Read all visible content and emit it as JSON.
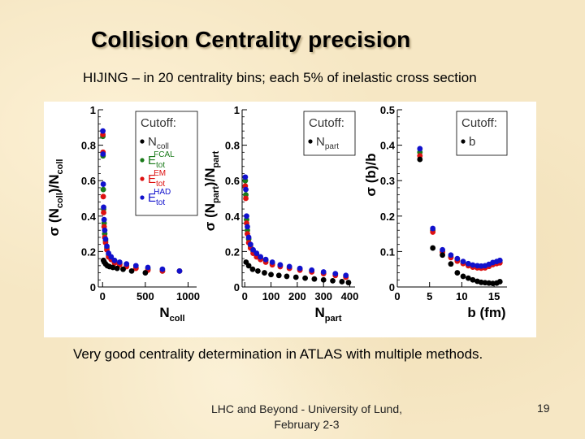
{
  "slide": {
    "title": "Collision Centrality precision",
    "subtitle": "HIJING – in 20 centrality bins; each 5% of inelastic cross section",
    "caption": "Very good centrality determination in ATLAS with multiple methods.",
    "footer_line1": "LHC and Beyond - University of Lund,",
    "footer_line2": "February 2-3",
    "page_number": "19"
  },
  "colors": {
    "black": "#000000",
    "green": "#1a7a1a",
    "red": "#dd1111",
    "blue": "#1111cc"
  },
  "chart_data": [
    {
      "type": "scatter",
      "title": "",
      "xlabel": "N",
      "xlabel_sub": "coll",
      "ylabel": "σ (N",
      "ylabel_sub": "coll",
      "ylabel_tail": ")/N",
      "ylabel_tail_sub": "coll",
      "xlim": [
        -50,
        1100
      ],
      "ylim": [
        0,
        1
      ],
      "xticks": [
        0,
        500,
        1000
      ],
      "yticks": [
        0,
        0.2,
        0.4,
        0.6,
        0.8,
        1
      ],
      "ytick_labels": [
        "0",
        "0.2",
        "0.4",
        "0.6",
        "0.8",
        "1"
      ],
      "legend": {
        "title": "Cutoff:",
        "position": "top-right",
        "entries": [
          {
            "name": "N",
            "sub": "coll",
            "sup": "",
            "color": "black"
          },
          {
            "name": "E",
            "sub": "tot",
            "sup": "FCAL",
            "color": "green"
          },
          {
            "name": "E",
            "sub": "tot",
            "sup": "EM",
            "color": "red"
          },
          {
            "name": "E",
            "sub": "tot",
            "sup": "HAD",
            "color": "blue"
          }
        ]
      },
      "series": [
        {
          "name": "Ncoll",
          "color": "black",
          "x": [
            10,
            20,
            35,
            55,
            80,
            120,
            170,
            240,
            340,
            500
          ],
          "y": [
            0.15,
            0.14,
            0.13,
            0.12,
            0.115,
            0.11,
            0.105,
            0.1,
            0.09,
            0.08
          ]
        },
        {
          "name": "Etot FCAL",
          "color": "green",
          "x": [
            3,
            5,
            8,
            12,
            18,
            25,
            35,
            50,
            70,
            100,
            140,
            200,
            280,
            390,
            530,
            700,
            900
          ],
          "y": [
            0.85,
            0.74,
            0.55,
            0.44,
            0.36,
            0.3,
            0.26,
            0.22,
            0.18,
            0.16,
            0.14,
            0.13,
            0.12,
            0.11,
            0.1,
            0.09,
            0.09
          ]
        },
        {
          "name": "Etot EM",
          "color": "red",
          "x": [
            3,
            5,
            8,
            12,
            18,
            25,
            35,
            50,
            70,
            100,
            140,
            200,
            280,
            390,
            530,
            700,
            900
          ],
          "y": [
            0.86,
            0.76,
            0.51,
            0.42,
            0.34,
            0.28,
            0.25,
            0.21,
            0.17,
            0.155,
            0.135,
            0.125,
            0.115,
            0.105,
            0.095,
            0.09,
            0.09
          ]
        },
        {
          "name": "Etot HAD",
          "color": "blue",
          "x": [
            3,
            5,
            8,
            12,
            18,
            25,
            35,
            50,
            70,
            100,
            140,
            200,
            280,
            390,
            530,
            700,
            900
          ],
          "y": [
            0.88,
            0.75,
            0.58,
            0.45,
            0.38,
            0.32,
            0.27,
            0.23,
            0.19,
            0.17,
            0.15,
            0.14,
            0.13,
            0.12,
            0.11,
            0.1,
            0.09
          ]
        }
      ]
    },
    {
      "type": "scatter",
      "title": "",
      "xlabel": "N",
      "xlabel_sub": "part",
      "ylabel": "σ (N",
      "ylabel_sub": "part",
      "ylabel_tail": ")/N",
      "ylabel_tail_sub": "part",
      "xlim": [
        -10,
        420
      ],
      "ylim": [
        0,
        1
      ],
      "xticks": [
        0,
        100,
        200,
        300,
        400
      ],
      "yticks": [
        0,
        0.2,
        0.4,
        0.6,
        0.8,
        1
      ],
      "ytick_labels": [
        "0",
        "0.2",
        "0.4",
        "0.6",
        "0.8",
        "1"
      ],
      "legend": {
        "title": "Cutoff:",
        "position": "top-right",
        "entries": [
          {
            "name": "N",
            "sub": "part",
            "sup": "",
            "color": "black"
          }
        ]
      },
      "series": [
        {
          "name": "Npart",
          "color": "black",
          "x": [
            5,
            15,
            30,
            50,
            75,
            100,
            130,
            160,
            195,
            230,
            265,
            300,
            335,
            370,
            395
          ],
          "y": [
            0.14,
            0.12,
            0.1,
            0.09,
            0.08,
            0.07,
            0.065,
            0.06,
            0.055,
            0.05,
            0.045,
            0.04,
            0.035,
            0.03,
            0.025
          ]
        },
        {
          "name": "Etot FCAL",
          "color": "green",
          "x": [
            2,
            4,
            7,
            10,
            15,
            22,
            32,
            45,
            60,
            80,
            105,
            135,
            170,
            210,
            255,
            300,
            345,
            385
          ],
          "y": [
            0.6,
            0.52,
            0.38,
            0.32,
            0.27,
            0.23,
            0.2,
            0.18,
            0.16,
            0.15,
            0.13,
            0.12,
            0.11,
            0.1,
            0.09,
            0.08,
            0.07,
            0.06
          ]
        },
        {
          "name": "Etot EM",
          "color": "red",
          "x": [
            2,
            4,
            7,
            10,
            15,
            22,
            32,
            45,
            60,
            80,
            105,
            135,
            170,
            210,
            255,
            300,
            345,
            385
          ],
          "y": [
            0.57,
            0.5,
            0.36,
            0.3,
            0.25,
            0.22,
            0.19,
            0.17,
            0.155,
            0.14,
            0.125,
            0.115,
            0.105,
            0.095,
            0.085,
            0.075,
            0.065,
            0.055
          ]
        },
        {
          "name": "Etot HAD",
          "color": "blue",
          "x": [
            2,
            4,
            7,
            10,
            15,
            22,
            32,
            45,
            60,
            80,
            105,
            135,
            170,
            210,
            255,
            300,
            345,
            385
          ],
          "y": [
            0.62,
            0.55,
            0.4,
            0.34,
            0.28,
            0.24,
            0.21,
            0.19,
            0.17,
            0.155,
            0.14,
            0.125,
            0.115,
            0.105,
            0.095,
            0.085,
            0.075,
            0.065
          ]
        }
      ]
    },
    {
      "type": "scatter",
      "title": "",
      "xlabel": "b (fm)",
      "ylabel": "σ (b)/b",
      "xlim": [
        0,
        17
      ],
      "ylim": [
        0,
        0.5
      ],
      "xticks": [
        0,
        5,
        10,
        15
      ],
      "yticks": [
        0,
        0.1,
        0.2,
        0.3,
        0.4,
        0.5
      ],
      "ytick_labels": [
        "0",
        "0.1",
        "0.2",
        "0.3",
        "0.4",
        "0.5"
      ],
      "legend": {
        "title": "Cutoff:",
        "position": "top-right",
        "entries": [
          {
            "name": "b",
            "sub": "",
            "sup": "",
            "color": "black"
          }
        ]
      },
      "series": [
        {
          "name": "b",
          "color": "black",
          "x": [
            3.5,
            5.5,
            7,
            8.3,
            9.3,
            10.2,
            11,
            11.7,
            12.4,
            13,
            13.6,
            14.2,
            14.8,
            15.4,
            15.9
          ],
          "y": [
            0.36,
            0.11,
            0.09,
            0.065,
            0.04,
            0.03,
            0.025,
            0.02,
            0.016,
            0.013,
            0.012,
            0.011,
            0.01,
            0.011,
            0.015
          ]
        },
        {
          "name": "Etot FCAL",
          "color": "green",
          "x": [
            3.5,
            5.5,
            7,
            8.3,
            9.3,
            10.2,
            11,
            11.7,
            12.4,
            13,
            13.6,
            14.2,
            14.8,
            15.4,
            15.9
          ],
          "y": [
            0.38,
            0.16,
            0.1,
            0.085,
            0.075,
            0.068,
            0.062,
            0.058,
            0.056,
            0.055,
            0.056,
            0.06,
            0.065,
            0.068,
            0.07
          ]
        },
        {
          "name": "Etot EM",
          "color": "red",
          "x": [
            3.5,
            5.5,
            7,
            8.3,
            9.3,
            10.2,
            11,
            11.7,
            12.4,
            13,
            13.6,
            14.2,
            14.8,
            15.4,
            15.9
          ],
          "y": [
            0.37,
            0.155,
            0.098,
            0.083,
            0.073,
            0.066,
            0.06,
            0.056,
            0.054,
            0.053,
            0.054,
            0.058,
            0.063,
            0.066,
            0.068
          ]
        },
        {
          "name": "Etot HAD",
          "color": "blue",
          "x": [
            3.5,
            5.5,
            7,
            8.3,
            9.3,
            10.2,
            11,
            11.7,
            12.4,
            13,
            13.6,
            14.2,
            14.8,
            15.4,
            15.9
          ],
          "y": [
            0.39,
            0.165,
            0.105,
            0.09,
            0.08,
            0.072,
            0.066,
            0.062,
            0.06,
            0.059,
            0.06,
            0.064,
            0.069,
            0.072,
            0.075
          ]
        }
      ]
    }
  ]
}
